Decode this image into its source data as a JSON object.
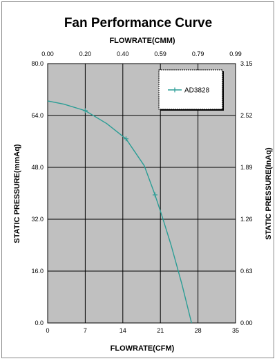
{
  "chart_data": {
    "type": "line",
    "title": "Fan Performance Curve",
    "x_top_label": "FLOWRATE(CMM)",
    "x_bottom_label": "FLOWRATE(CFM)",
    "y_left_label": "STATIC PRESSURE(mmAq)",
    "y_right_label": "STATIC PRESSURE(InAq)",
    "xlim": [
      0,
      35
    ],
    "ylim": [
      0,
      80
    ],
    "x_bottom_ticks": [
      "0",
      "7",
      "14",
      "21",
      "28",
      "35"
    ],
    "x_top_ticks": [
      "0.00",
      "0.20",
      "0.40",
      "0.59",
      "0.79",
      "0.99"
    ],
    "y_left_ticks": [
      "0.0",
      "16.0",
      "32.0",
      "48.0",
      "64.0",
      "80.0"
    ],
    "y_right_ticks": [
      "0.00",
      "0.63",
      "1.26",
      "1.89",
      "2.52",
      "3.15"
    ],
    "grid": true,
    "legend_position": "top-right",
    "colors": {
      "plot_background": "#c0c0c0",
      "series": "#2a9d95",
      "grid": "#000000"
    },
    "series": [
      {
        "name": "AD3828",
        "x": [
          0,
          3,
          7,
          11,
          14.6,
          18,
          20,
          21.4,
          23,
          25,
          26.8
        ],
        "y": [
          68.5,
          67.5,
          65.5,
          61.5,
          56.8,
          48.5,
          39.5,
          32.5,
          24,
          12,
          0
        ],
        "marker_x": [
          7,
          14.6,
          20
        ],
        "marker_y": [
          65.5,
          56.8,
          39.5
        ]
      }
    ]
  }
}
